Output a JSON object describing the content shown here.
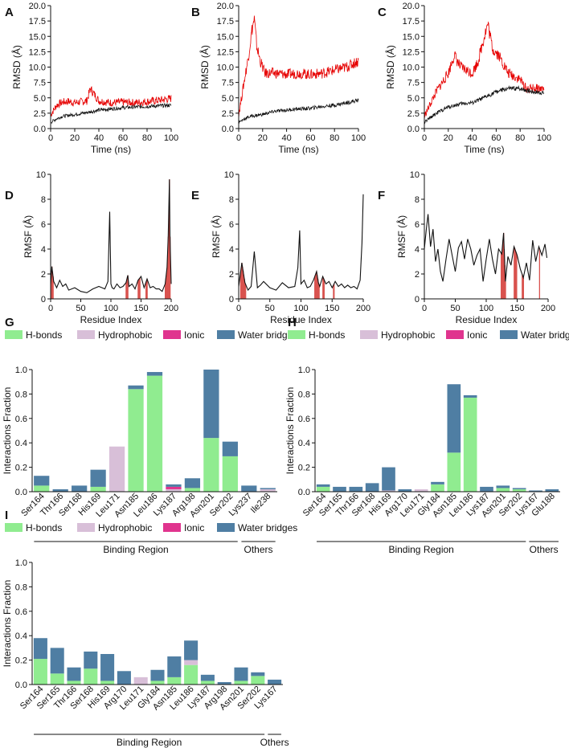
{
  "figure": {
    "panel_letters": [
      "A",
      "B",
      "C",
      "D",
      "E",
      "F",
      "G",
      "H",
      "I"
    ]
  },
  "colors": {
    "black": "#111111",
    "red": "#e60000",
    "rmsf_band": "#d9534f",
    "hbond": "#90ec90",
    "hydrophobic": "#d8bfd8",
    "ionic": "#e0348e",
    "water": "#4f7ea3"
  },
  "chart_data": [
    {
      "panel": "A",
      "type": "line",
      "xlabel": "Time (ns)",
      "ylabel": "RMSD (Å)",
      "xlim": [
        0,
        100
      ],
      "ylim": [
        0,
        20
      ],
      "xticks": [
        0,
        20,
        40,
        60,
        80,
        100
      ],
      "yticks": [
        "0.0",
        "2.5",
        "5.0",
        "7.5",
        "10.0",
        "12.5",
        "15.0",
        "17.5",
        "20.0"
      ],
      "series": [
        {
          "name": "black",
          "x": [
            0,
            5,
            10,
            20,
            30,
            40,
            50,
            60,
            70,
            80,
            90,
            100
          ],
          "y": [
            1.0,
            1.6,
            2.0,
            2.3,
            2.6,
            3.0,
            3.2,
            3.4,
            3.5,
            3.6,
            3.7,
            3.8
          ]
        },
        {
          "name": "red",
          "x": [
            0,
            5,
            10,
            15,
            20,
            30,
            33,
            40,
            50,
            60,
            70,
            80,
            90,
            100
          ],
          "y": [
            2.2,
            3.8,
            4.3,
            4.4,
            4.2,
            4.5,
            6.5,
            4.5,
            4.2,
            4.3,
            4.2,
            4.4,
            4.6,
            4.9
          ]
        }
      ]
    },
    {
      "panel": "B",
      "type": "line",
      "xlabel": "Time (ns)",
      "ylabel": "RMSD (Å)",
      "xlim": [
        0,
        100
      ],
      "ylim": [
        0,
        20
      ],
      "xticks": [
        0,
        20,
        40,
        60,
        80,
        100
      ],
      "yticks": [
        "0.0",
        "2.5",
        "5.0",
        "7.5",
        "10.0",
        "12.5",
        "15.0",
        "17.5",
        "20.0"
      ],
      "series": [
        {
          "name": "black",
          "x": [
            0,
            5,
            10,
            20,
            30,
            40,
            50,
            60,
            70,
            80,
            90,
            100
          ],
          "y": [
            1.0,
            1.6,
            2.0,
            2.3,
            2.8,
            3.0,
            3.2,
            3.3,
            3.6,
            3.8,
            4.2,
            4.6
          ]
        },
        {
          "name": "red",
          "x": [
            0,
            4,
            8,
            11,
            13,
            15,
            18,
            22,
            30,
            40,
            50,
            60,
            70,
            80,
            90,
            100
          ],
          "y": [
            2.2,
            7.0,
            11.5,
            16.0,
            17.8,
            13.5,
            11.0,
            9.0,
            9.0,
            8.8,
            9.0,
            8.8,
            9.0,
            9.5,
            10.0,
            11.0
          ]
        }
      ]
    },
    {
      "panel": "C",
      "type": "line",
      "xlabel": "Time (ns)",
      "ylabel": "RMSD (Å)",
      "xlim": [
        0,
        100
      ],
      "ylim": [
        0,
        20
      ],
      "xticks": [
        0,
        20,
        40,
        60,
        80,
        100
      ],
      "yticks": [
        "0.0",
        "2.5",
        "5.0",
        "7.5",
        "10.0",
        "12.5",
        "15.0",
        "17.5",
        "20.0"
      ],
      "series": [
        {
          "name": "black",
          "x": [
            0,
            10,
            20,
            30,
            40,
            50,
            60,
            70,
            80,
            90,
            100
          ],
          "y": [
            1.0,
            2.5,
            3.5,
            4.0,
            4.2,
            5.0,
            6.0,
            6.5,
            6.5,
            6.0,
            5.8
          ]
        },
        {
          "name": "red",
          "x": [
            0,
            10,
            20,
            25,
            30,
            40,
            45,
            50,
            53,
            57,
            62,
            70,
            80,
            85,
            90,
            100
          ],
          "y": [
            2.0,
            6.0,
            9.0,
            12.0,
            10.0,
            9.0,
            11.0,
            15.0,
            17.0,
            13.0,
            12.0,
            9.0,
            8.0,
            6.5,
            6.5,
            6.5
          ]
        }
      ]
    },
    {
      "panel": "D",
      "type": "line",
      "xlabel": "Residue Index",
      "ylabel": "RMSF (Å)",
      "xlim": [
        0,
        200
      ],
      "ylim": [
        0,
        10
      ],
      "xticks": [
        0,
        50,
        100,
        150,
        200
      ],
      "yticks": [
        0,
        2,
        4,
        6,
        8,
        10
      ],
      "highlight_residues": [
        1,
        2,
        3,
        4,
        125,
        126,
        127,
        128,
        145,
        146,
        147,
        148,
        158,
        159,
        160,
        190,
        191,
        192,
        193,
        194,
        195,
        196,
        197,
        198
      ],
      "series": [
        {
          "name": "rmsf",
          "x": [
            0,
            2,
            5,
            10,
            15,
            20,
            25,
            30,
            40,
            50,
            60,
            70,
            80,
            90,
            95,
            98,
            100,
            102,
            105,
            110,
            115,
            120,
            125,
            128,
            130,
            135,
            140,
            145,
            150,
            155,
            160,
            165,
            170,
            175,
            180,
            185,
            190,
            193,
            195,
            197,
            198,
            200
          ],
          "y": [
            1.2,
            2.6,
            1.4,
            0.9,
            1.5,
            1.0,
            1.2,
            0.7,
            0.9,
            0.6,
            0.5,
            0.8,
            1.0,
            0.8,
            1.4,
            7.0,
            1.2,
            0.9,
            0.8,
            1.2,
            0.9,
            1.0,
            1.3,
            1.9,
            1.0,
            1.2,
            0.8,
            1.5,
            1.8,
            0.9,
            1.6,
            0.9,
            1.0,
            0.8,
            0.8,
            0.6,
            1.2,
            2.5,
            5.0,
            9.6,
            5.0,
            1.2
          ]
        }
      ]
    },
    {
      "panel": "E",
      "type": "line",
      "xlabel": "Residue Index",
      "ylabel": "RMSF (Å)",
      "xlim": [
        0,
        200
      ],
      "ylim": [
        0,
        10
      ],
      "xticks": [
        0,
        50,
        100,
        150,
        200
      ],
      "yticks": [
        0,
        2,
        4,
        6,
        8,
        10
      ],
      "highlight_residues": [
        3,
        4,
        5,
        6,
        7,
        8,
        9,
        10,
        11,
        122,
        123,
        124,
        125,
        126,
        127,
        128,
        129,
        135,
        136,
        137,
        152,
        153
      ],
      "series": [
        {
          "name": "rmsf",
          "x": [
            0,
            5,
            10,
            15,
            20,
            25,
            30,
            35,
            40,
            50,
            60,
            70,
            80,
            90,
            95,
            98,
            100,
            105,
            110,
            115,
            120,
            125,
            128,
            130,
            135,
            140,
            145,
            150,
            155,
            160,
            165,
            170,
            175,
            180,
            185,
            190,
            195,
            198,
            200
          ],
          "y": [
            1.0,
            2.9,
            1.3,
            0.7,
            1.0,
            3.8,
            0.9,
            1.1,
            1.4,
            0.9,
            0.7,
            1.3,
            0.9,
            1.0,
            2.5,
            5.5,
            1.2,
            1.5,
            0.9,
            1.0,
            1.5,
            2.2,
            1.3,
            1.0,
            1.8,
            1.2,
            1.4,
            0.9,
            1.4,
            1.0,
            1.2,
            0.9,
            1.1,
            0.9,
            1.0,
            0.8,
            1.5,
            4.5,
            8.4
          ]
        }
      ]
    },
    {
      "panel": "F",
      "type": "line",
      "xlabel": "Residue Index",
      "ylabel": "RMSF (Å)",
      "xlim": [
        0,
        200
      ],
      "ylim": [
        0,
        10
      ],
      "xticks": [
        0,
        50,
        100,
        150,
        200
      ],
      "yticks": [
        0,
        2,
        4,
        6,
        8,
        10
      ],
      "highlight_residues": [
        124,
        125,
        126,
        127,
        128,
        129,
        130,
        131,
        145,
        146,
        147,
        148,
        149,
        158,
        159,
        160,
        186
      ],
      "series": [
        {
          "name": "rmsf",
          "x": [
            0,
            3,
            6,
            10,
            14,
            18,
            22,
            26,
            30,
            35,
            40,
            45,
            50,
            55,
            60,
            65,
            70,
            75,
            80,
            85,
            90,
            95,
            100,
            105,
            110,
            115,
            120,
            125,
            128,
            131,
            135,
            140,
            145,
            150,
            155,
            160,
            165,
            170,
            175,
            180,
            185,
            190,
            195,
            198
          ],
          "y": [
            4.0,
            5.5,
            6.8,
            4.2,
            5.6,
            3.0,
            4.0,
            2.2,
            1.4,
            3.2,
            4.8,
            3.5,
            2.2,
            4.1,
            4.6,
            3.2,
            4.8,
            4.0,
            2.7,
            3.5,
            4.0,
            1.4,
            3.2,
            4.8,
            3.2,
            2.0,
            4.0,
            3.6,
            5.3,
            1.4,
            3.4,
            2.7,
            4.2,
            3.5,
            2.4,
            1.7,
            2.9,
            1.5,
            4.7,
            3.0,
            4.2,
            3.5,
            4.4,
            3.3
          ]
        }
      ]
    },
    {
      "panel": "G",
      "type": "bar",
      "ylabel": "Interactions Fraction",
      "ylim": [
        0,
        1.0
      ],
      "yticks": [
        "0.0",
        "0.2",
        "0.4",
        "0.6",
        "0.8",
        "1.0"
      ],
      "legend": [
        "H-bonds",
        "Hydrophobic",
        "Ionic",
        "Water bridges"
      ],
      "categories": [
        "Ser164",
        "Thr166",
        "Ser168",
        "His169",
        "Leu171",
        "Asn185",
        "Leu186",
        "Lys187",
        "Arg198",
        "Asn201",
        "Ser202",
        "Lys237",
        "Ile238"
      ],
      "groups": [
        {
          "label": "Binding Region",
          "from": 0,
          "to": 10
        },
        {
          "label": "Others",
          "from": 11,
          "to": 12
        }
      ],
      "series": [
        {
          "name": "H-bonds",
          "values": [
            0.05,
            0.0,
            0.0,
            0.04,
            0.0,
            0.84,
            0.95,
            0.0,
            0.03,
            0.44,
            0.29,
            0.0,
            0.0
          ]
        },
        {
          "name": "Hydrophobic",
          "values": [
            0.0,
            0.0,
            0.0,
            0.0,
            0.37,
            0.0,
            0.0,
            0.02,
            0.0,
            0.0,
            0.0,
            0.0,
            0.02
          ]
        },
        {
          "name": "Ionic",
          "values": [
            0.0,
            0.0,
            0.0,
            0.0,
            0.0,
            0.0,
            0.0,
            0.02,
            0.0,
            0.0,
            0.0,
            0.0,
            0.0
          ]
        },
        {
          "name": "Water bridges",
          "values": [
            0.08,
            0.02,
            0.05,
            0.14,
            0.0,
            0.03,
            0.03,
            0.02,
            0.08,
            0.56,
            0.12,
            0.05,
            0.01
          ]
        }
      ]
    },
    {
      "panel": "H",
      "type": "bar",
      "ylabel": "Interactions Fraction",
      "ylim": [
        0,
        1.0
      ],
      "yticks": [
        "0.0",
        "0.2",
        "0.4",
        "0.6",
        "0.8",
        "1.0"
      ],
      "legend": [
        "H-bonds",
        "Hydrophobic",
        "Ionic",
        "Water bridges"
      ],
      "categories": [
        "Ser164",
        "Ser165",
        "Thr166",
        "Ser168",
        "His169",
        "Arg170",
        "Leu171",
        "Gly184",
        "Asn185",
        "Leu186",
        "Lys187",
        "Asn201",
        "Ser202",
        "Lys167",
        "Glu188"
      ],
      "groups": [
        {
          "label": "Binding Region",
          "from": 0,
          "to": 12
        },
        {
          "label": "Others",
          "from": 13,
          "to": 14
        }
      ],
      "series": [
        {
          "name": "H-bonds",
          "values": [
            0.04,
            0.0,
            0.0,
            0.0,
            0.0,
            0.0,
            0.0,
            0.06,
            0.32,
            0.77,
            0.0,
            0.03,
            0.02,
            0.0,
            0.0
          ]
        },
        {
          "name": "Hydrophobic",
          "values": [
            0.0,
            0.0,
            0.0,
            0.0,
            0.01,
            0.0,
            0.02,
            0.0,
            0.0,
            0.0,
            0.0,
            0.0,
            0.0,
            0.0,
            0.0
          ]
        },
        {
          "name": "Ionic",
          "values": [
            0.0,
            0.0,
            0.0,
            0.0,
            0.0,
            0.0,
            0.0,
            0.0,
            0.0,
            0.0,
            0.0,
            0.0,
            0.0,
            0.0,
            0.0
          ]
        },
        {
          "name": "Water bridges",
          "values": [
            0.02,
            0.04,
            0.04,
            0.07,
            0.19,
            0.02,
            0.0,
            0.02,
            0.56,
            0.02,
            0.04,
            0.02,
            0.01,
            0.01,
            0.02
          ]
        }
      ]
    },
    {
      "panel": "I",
      "type": "bar",
      "ylabel": "Interactions Fraction",
      "ylim": [
        0,
        1.0
      ],
      "yticks": [
        "0.0",
        "0.2",
        "0.4",
        "0.6",
        "0.8",
        "1.0"
      ],
      "legend": [
        "H-bonds",
        "Hydrophobic",
        "Ionic",
        "Water bridges"
      ],
      "categories": [
        "Ser164",
        "Ser165",
        "Thr166",
        "Ser168",
        "His169",
        "Arg170",
        "Leu171",
        "Gly184",
        "Asn185",
        "Leu186",
        "Lys187",
        "Arg198",
        "Asn201",
        "Ser202",
        "Lys167"
      ],
      "groups": [
        {
          "label": "Binding Region",
          "from": 0,
          "to": 13
        },
        {
          "label": "Others",
          "from": 14,
          "to": 14
        }
      ],
      "series": [
        {
          "name": "H-bonds",
          "values": [
            0.21,
            0.09,
            0.03,
            0.13,
            0.03,
            0.0,
            0.0,
            0.03,
            0.06,
            0.16,
            0.03,
            0.0,
            0.03,
            0.07,
            0.0
          ]
        },
        {
          "name": "Hydrophobic",
          "values": [
            0.0,
            0.0,
            0.0,
            0.0,
            0.0,
            0.0,
            0.06,
            0.0,
            0.0,
            0.04,
            0.0,
            0.0,
            0.0,
            0.0,
            0.0
          ]
        },
        {
          "name": "Ionic",
          "values": [
            0.0,
            0.0,
            0.0,
            0.0,
            0.0,
            0.0,
            0.0,
            0.0,
            0.0,
            0.0,
            0.0,
            0.0,
            0.0,
            0.0,
            0.0
          ]
        },
        {
          "name": "Water bridges",
          "values": [
            0.17,
            0.21,
            0.11,
            0.14,
            0.22,
            0.11,
            0.0,
            0.09,
            0.17,
            0.16,
            0.05,
            0.02,
            0.11,
            0.03,
            0.04
          ]
        }
      ]
    }
  ]
}
